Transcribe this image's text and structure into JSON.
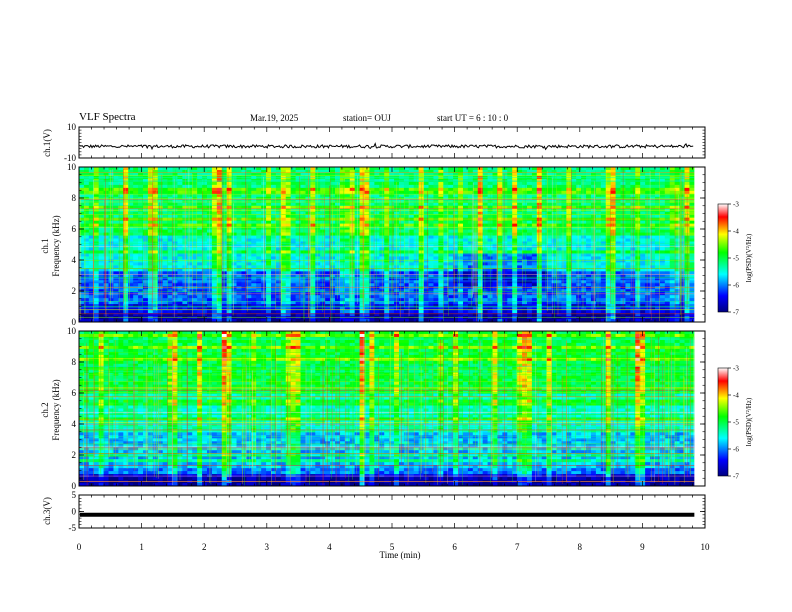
{
  "header": {
    "title": "VLF Spectra",
    "date": "Mar.19, 2025",
    "station": "station= OUJ",
    "start": "start  UT =   6  : 10 : 0"
  },
  "chart_data": [
    {
      "type": "line",
      "name": "ch1-waveform",
      "ylabel": "ch.1(V)",
      "ylim": [
        -10,
        10
      ],
      "yticks": [
        "10",
        "-10"
      ],
      "baseline": -2.5,
      "amplitude": 1.0,
      "xlim": [
        0,
        10
      ],
      "data_end": 9.83
    },
    {
      "type": "heatmap",
      "name": "ch1-spectrogram",
      "ylabel_top": "ch.1",
      "ylabel": "Frequency (kHz)",
      "ylim": [
        0,
        10
      ],
      "yticks": [
        "0",
        "2",
        "4",
        "6",
        "8",
        "10"
      ],
      "xlim": [
        0,
        10
      ],
      "data_end": 9.83,
      "colorbar": {
        "label": "log(PSD)(V²/Hz)",
        "range": [
          -7,
          -3
        ],
        "ticks": [
          "-3",
          "-4",
          "-5",
          "-6",
          "-7"
        ]
      }
    },
    {
      "type": "heatmap",
      "name": "ch2-spectrogram",
      "ylabel_top": "ch.2",
      "ylabel": "Frequency (kHz)",
      "ylim": [
        0,
        10
      ],
      "yticks": [
        "0",
        "2",
        "4",
        "6",
        "8",
        "10"
      ],
      "xlim": [
        0,
        10
      ],
      "data_end": 9.83,
      "colorbar": {
        "label": "log(PSD)(V²/Hz)",
        "range": [
          -7,
          -3
        ],
        "ticks": [
          "-3",
          "-4",
          "-5",
          "-6",
          "-7"
        ]
      }
    },
    {
      "type": "line",
      "name": "ch3-waveform",
      "ylabel": "ch.3(V)",
      "ylim": [
        -5,
        5
      ],
      "yticks": [
        "5",
        "0",
        "-5"
      ],
      "baseline": -1.0,
      "xlim": [
        0,
        10
      ],
      "data_end": 9.83,
      "xlabel": "Time (min)",
      "xticks": [
        "0",
        "1",
        "2",
        "3",
        "4",
        "5",
        "6",
        "7",
        "8",
        "9",
        "10"
      ]
    }
  ]
}
